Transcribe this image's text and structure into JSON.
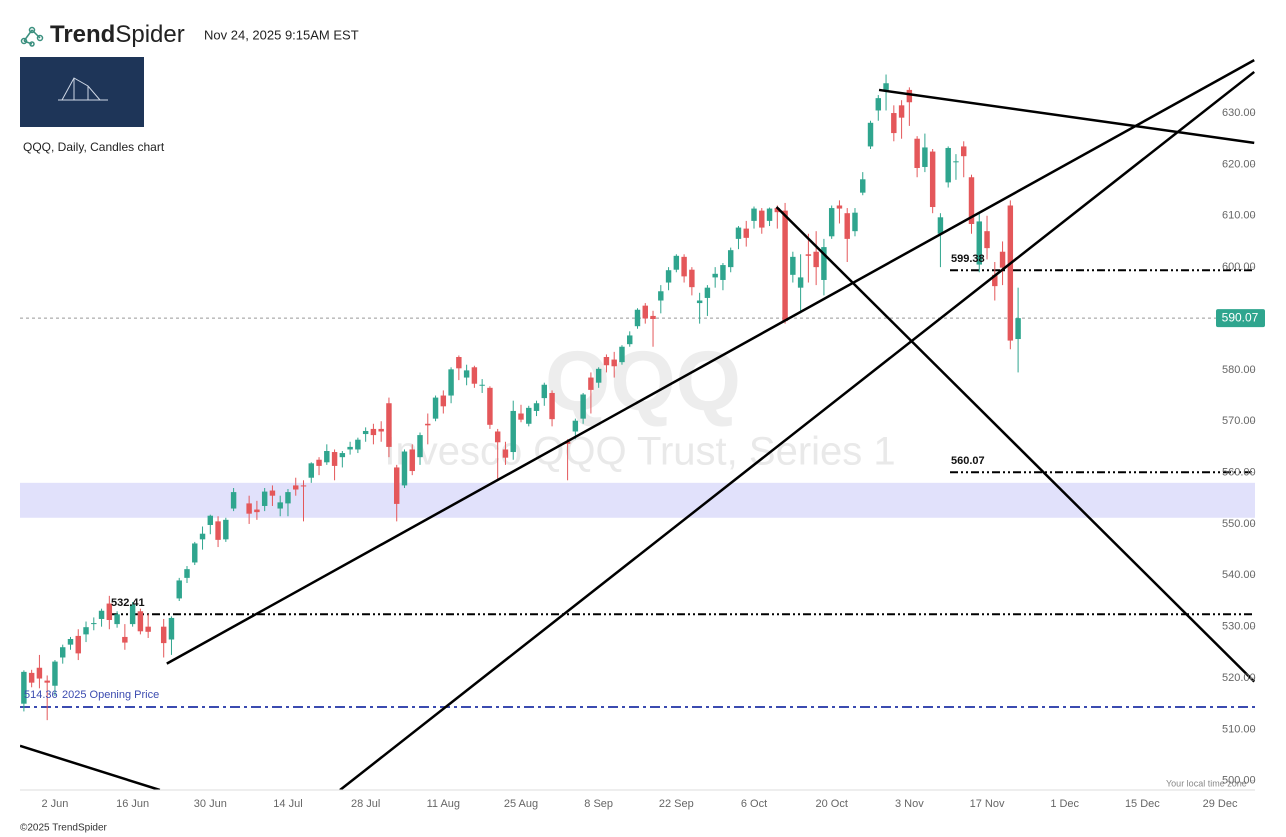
{
  "header": {
    "brand": [
      "Trend",
      "Spider"
    ],
    "timestamp": "Nov 24, 2025 9:15AM EST",
    "chart_label": "QQQ, Daily, Candles chart"
  },
  "footer": {
    "copyright": "©2025 TrendSpider",
    "timezone_note": "Your local time zone"
  },
  "chart_data": {
    "type": "candlestick",
    "watermark": {
      "symbol": "QQQ",
      "name": "Invesco QQQ Trust, Series 1"
    },
    "up_color": "#2fa58e",
    "down_color": "#e4575a",
    "ylim": [
      498.2,
      641.3
    ],
    "yticks": [
      {
        "value": 500,
        "label": "500.00"
      },
      {
        "value": 510,
        "label": "510.00"
      },
      {
        "value": 520,
        "label": "520.00"
      },
      {
        "value": 530,
        "label": "530.00"
      },
      {
        "value": 540,
        "label": "540.00"
      },
      {
        "value": 550,
        "label": "550.00"
      },
      {
        "value": 560,
        "label": "560.00"
      },
      {
        "value": 570,
        "label": "570.00"
      },
      {
        "value": 580,
        "label": "580.00"
      },
      {
        "value": 590,
        "label": "590.00"
      },
      {
        "value": 600,
        "label": "600.00"
      },
      {
        "value": 610,
        "label": "610.00"
      },
      {
        "value": 620,
        "label": "620.00"
      },
      {
        "value": 630,
        "label": "630.00"
      }
    ],
    "categories": [
      null,
      null,
      null,
      null,
      "2 Jun",
      null,
      null,
      null,
      null,
      null,
      null,
      null,
      null,
      null,
      "16 Jun",
      null,
      null,
      null,
      null,
      null,
      null,
      null,
      null,
      null,
      "30 Jun",
      null,
      null,
      null,
      null,
      null,
      null,
      null,
      null,
      null,
      "14 Jul",
      null,
      null,
      null,
      null,
      null,
      null,
      null,
      null,
      null,
      "28 Jul",
      null,
      null,
      null,
      null,
      null,
      null,
      null,
      null,
      null,
      "11 Aug",
      null,
      null,
      null,
      null,
      null,
      null,
      null,
      null,
      null,
      "25 Aug",
      null,
      null,
      null,
      null,
      null,
      null,
      null,
      null,
      null,
      "8 Sep",
      null,
      null,
      null,
      null,
      null,
      null,
      null,
      null,
      null,
      "22 Sep",
      null,
      null,
      null,
      null,
      null,
      null,
      null,
      null,
      null,
      "6 Oct",
      null,
      null,
      null,
      null,
      null,
      null,
      null,
      null,
      null,
      "20 Oct",
      null,
      null,
      null,
      null,
      null,
      null,
      null,
      null,
      null,
      "3 Nov",
      null,
      null,
      null,
      null,
      null,
      null,
      null,
      null,
      null,
      "17 Nov",
      null,
      null,
      null,
      null,
      null,
      null,
      null,
      null,
      null,
      "1 Dec",
      null,
      null,
      null,
      null,
      null,
      null,
      null,
      null,
      null,
      "15 Dec",
      null,
      null,
      null,
      null,
      null,
      null,
      null,
      null,
      null,
      "29 Dec",
      null,
      null,
      null,
      null
    ],
    "open": [
      515.0,
      521.0,
      522.0,
      519.5,
      518.5,
      524.0,
      526.5,
      528.2,
      528.5,
      530.5,
      531.5,
      534.5,
      530.5,
      528.0,
      530.5,
      533.0,
      530.0,
      null,
      530.0,
      527.5,
      535.5,
      539.5,
      542.5,
      547.0,
      549.8,
      550.5,
      547.0,
      553.0,
      null,
      554.0,
      552.8,
      553.5,
      556.5,
      553.0,
      554.0,
      557.5,
      557.5,
      559.0,
      562.5,
      562.0,
      564.0,
      563.0,
      564.5,
      564.5,
      567.5,
      568.5,
      568.5,
      573.5,
      561.0,
      557.5,
      564.5,
      563.0,
      569.5,
      570.5,
      575.0,
      575.0,
      582.5,
      578.5,
      580.5,
      577.0,
      576.5,
      568.0,
      564.5,
      564.0,
      571.5,
      569.5,
      572.0,
      574.5,
      575.5,
      null,
      566.0,
      568.0,
      570.5,
      578.5,
      577.5,
      582.5,
      582.0,
      581.5,
      585.0,
      588.5,
      592.5,
      590.5,
      593.5,
      597.0,
      599.5,
      602.0,
      599.5,
      593.0,
      594.0,
      598.0,
      597.5,
      600.0,
      605.5,
      607.5,
      609.0,
      611.0,
      609.0,
      611.5,
      611.0,
      598.5,
      596.0,
      602.5,
      603.0,
      597.5,
      606.0,
      612.0,
      610.5,
      607.0,
      614.5,
      623.5,
      630.5,
      634.5,
      630.0,
      631.5,
      634.5,
      625.0,
      619.5,
      622.5,
      606.5,
      616.5,
      620.5,
      623.5,
      617.5,
      600.5,
      607.0,
      598.5,
      603.0,
      612.0,
      586.0,
      null,
      null,
      null,
      null,
      null,
      null,
      null,
      null,
      null,
      null,
      null,
      null,
      null,
      null,
      null,
      null,
      null,
      null,
      null,
      null,
      null,
      null,
      null,
      null,
      null,
      null,
      null,
      null,
      null,
      null
    ],
    "high": [
      521.5,
      521.6,
      524.5,
      520.5,
      523.5,
      526.5,
      528.0,
      529.5,
      531.0,
      531.8,
      533.5,
      536.0,
      533.0,
      530.5,
      534.8,
      533.5,
      532.5,
      null,
      531.5,
      532.0,
      539.5,
      541.8,
      546.5,
      549.5,
      551.8,
      551.5,
      551.2,
      557.0,
      null,
      555.5,
      554.5,
      557.0,
      557.5,
      555.5,
      556.8,
      559.0,
      558.5,
      562.0,
      563.0,
      565.5,
      564.5,
      564.2,
      566.0,
      566.8,
      568.8,
      569.5,
      570.0,
      574.6,
      561.5,
      564.5,
      565.5,
      567.8,
      571.5,
      575.0,
      576.0,
      580.5,
      582.8,
      581.0,
      580.8,
      578.2,
      576.8,
      568.5,
      566.0,
      574.0,
      573.2,
      573.0,
      574.0,
      577.5,
      576.0,
      null,
      566.5,
      570.5,
      575.5,
      579.5,
      580.5,
      583.0,
      583.5,
      584.8,
      587.5,
      592.0,
      593.0,
      591.5,
      596.5,
      600.0,
      602.5,
      602.5,
      600.0,
      595.0,
      596.5,
      600.0,
      600.8,
      603.8,
      608.0,
      609.0,
      611.8,
      611.5,
      611.6,
      612.0,
      612.5,
      603.0,
      602.5,
      606.5,
      607.0,
      605.5,
      612.0,
      613.0,
      611.5,
      611.5,
      618.5,
      628.5,
      633.5,
      637.5,
      631.5,
      632.5,
      635.0,
      625.5,
      626.0,
      623.0,
      610.5,
      623.5,
      622.0,
      624.5,
      618.0,
      610.5,
      610.0,
      601.0,
      605.0,
      613.0,
      596.0,
      null,
      null,
      null,
      null,
      null,
      null,
      null,
      null,
      null,
      null,
      null,
      null,
      null,
      null,
      null,
      null,
      null,
      null,
      null,
      null,
      null,
      null,
      null,
      null,
      null,
      null,
      null,
      null,
      null,
      null
    ],
    "low": [
      513.5,
      518.2,
      518.0,
      511.8,
      516.5,
      522.8,
      525.5,
      523.5,
      527.0,
      529.3,
      530.0,
      529.5,
      529.8,
      525.5,
      530.0,
      528.5,
      527.8,
      null,
      524.0,
      524.5,
      535.0,
      538.5,
      542.0,
      545.0,
      548.0,
      545.5,
      546.5,
      552.5,
      null,
      550.0,
      550.8,
      552.5,
      553.5,
      551.5,
      551.5,
      555.5,
      550.5,
      558.0,
      559.5,
      561.5,
      558.5,
      561.0,
      563.5,
      563.8,
      566.0,
      565.5,
      566.0,
      563.0,
      550.5,
      557.0,
      559.5,
      561.5,
      565.5,
      570.0,
      571.5,
      573.5,
      578.0,
      577.0,
      576.5,
      575.5,
      568.5,
      558.5,
      561.5,
      562.5,
      569.8,
      569.0,
      571.0,
      573.0,
      569.0,
      null,
      558.5,
      566.5,
      569.5,
      571.5,
      576.5,
      579.5,
      578.5,
      581.0,
      584.5,
      588.0,
      589.0,
      584.5,
      591.0,
      595.5,
      599.0,
      597.0,
      594.5,
      589.0,
      590.5,
      596.0,
      595.5,
      599.0,
      603.5,
      604.0,
      607.5,
      606.5,
      608.0,
      607.5,
      589.0,
      597.0,
      591.0,
      597.0,
      596.5,
      594.5,
      605.5,
      608.5,
      601.0,
      606.0,
      614.0,
      623.0,
      628.5,
      630.5,
      624.5,
      625.0,
      627.5,
      617.5,
      618.5,
      610.5,
      600.0,
      615.5,
      617.0,
      617.5,
      606.5,
      599.0,
      601.5,
      593.5,
      596.5,
      584.0,
      579.5,
      null,
      null,
      null,
      null,
      null,
      null,
      null,
      null,
      null,
      null,
      null,
      null,
      null,
      null,
      null,
      null,
      null,
      null,
      null,
      null,
      null,
      null,
      null,
      null,
      null,
      null,
      null,
      null,
      null,
      null
    ],
    "close": [
      521.2,
      519.1,
      519.9,
      519.1,
      523.2,
      526.0,
      527.6,
      524.8,
      529.9,
      530.7,
      533.1,
      531.3,
      532.4,
      526.9,
      534.3,
      529.1,
      529.0,
      null,
      526.8,
      531.7,
      539.0,
      541.2,
      546.2,
      548.1,
      551.6,
      546.9,
      550.8,
      556.2,
      null,
      552.0,
      552.3,
      556.3,
      555.5,
      554.2,
      556.2,
      556.7,
      557.3,
      561.8,
      561.3,
      564.2,
      561.3,
      563.8,
      565.0,
      566.4,
      568.1,
      567.3,
      568.0,
      565.0,
      553.9,
      564.1,
      560.3,
      567.3,
      569.2,
      574.6,
      572.9,
      580.1,
      580.3,
      579.9,
      577.3,
      577.1,
      569.3,
      565.9,
      562.9,
      572.0,
      570.3,
      572.6,
      573.5,
      577.1,
      570.4,
      null,
      565.6,
      570.1,
      575.2,
      576.1,
      580.2,
      580.9,
      580.7,
      584.5,
      586.7,
      591.7,
      590.0,
      589.9,
      595.3,
      599.4,
      602.2,
      598.2,
      596.1,
      593.5,
      596.0,
      598.7,
      600.4,
      603.3,
      607.7,
      605.7,
      611.4,
      607.7,
      611.4,
      610.7,
      589.5,
      602.0,
      598.0,
      602.2,
      600.0,
      603.9,
      611.5,
      611.4,
      605.5,
      610.6,
      617.1,
      628.1,
      632.9,
      635.8,
      626.1,
      629.1,
      632.1,
      619.3,
      623.3,
      611.7,
      609.7,
      623.2,
      620.6,
      621.6,
      608.4,
      608.9,
      603.7,
      596.3,
      599.9,
      585.7,
      590.07,
      null,
      null,
      null,
      null,
      null,
      null,
      null,
      null,
      null,
      null,
      null,
      null,
      null,
      null,
      null,
      null,
      null,
      null,
      null,
      null,
      null,
      null,
      null,
      null,
      null,
      null,
      null,
      null,
      null,
      null
    ],
    "levels": [
      599.38,
      560.07,
      532.41
    ],
    "opening_price": {
      "value": 514.36,
      "label": "2025 Opening Price"
    },
    "zone": [
      551.2,
      558.0
    ],
    "trendlines": [
      {
        "x": [
          18.4,
          158.4
        ],
        "y": [
          522.8,
          640.3
        ]
      },
      {
        "x": [
          40.7,
          158.4
        ],
        "y": [
          498.2,
          638.0
        ]
      },
      {
        "x": [
          96.9,
          158.4
        ],
        "y": [
          611.7,
          519.3
        ]
      },
      {
        "x": [
          110.1,
          158.4
        ],
        "y": [
          634.5,
          624.2
        ]
      },
      {
        "x": [
          -0.5,
          17.5
        ],
        "y": [
          506.8,
          498.2
        ]
      }
    ]
  }
}
